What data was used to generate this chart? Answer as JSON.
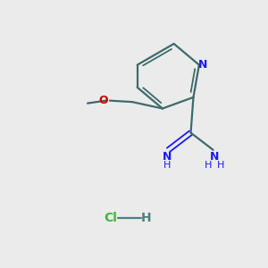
{
  "bg_color": "#EBEBEB",
  "bond_color": "#3d6b6b",
  "n_color": "#1a1aff",
  "o_color": "#cc0000",
  "cl_color": "#3db83d",
  "h_color": "#4d8080",
  "figsize": [
    3.0,
    3.0
  ],
  "dpi": 100,
  "xlim": [
    0,
    10
  ],
  "ylim": [
    0,
    10
  ]
}
